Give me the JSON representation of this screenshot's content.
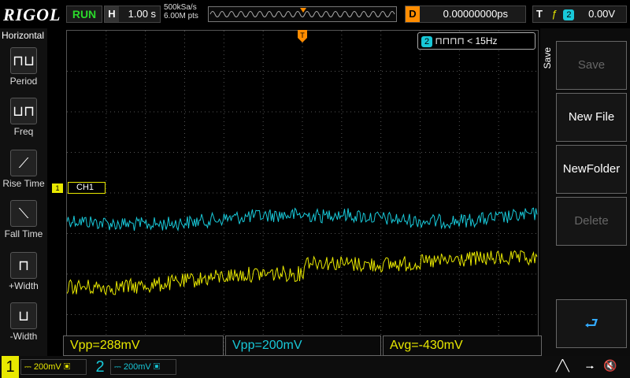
{
  "topbar": {
    "logo": "RIGOL",
    "run_status": "RUN",
    "h_label": "H",
    "timebase": "1.00 s",
    "sample_rate": "500kSa/s",
    "memory_depth": "6.00M pts",
    "delay_label": "D",
    "delay_value": "0.00000000ps",
    "trigger_label": "T",
    "trigger_source": "2",
    "trigger_level": "0.00V"
  },
  "left_menu": {
    "title": "Horizontal",
    "items": [
      {
        "label": "Period",
        "icon": "period-icon"
      },
      {
        "label": "Freq",
        "icon": "freq-icon"
      },
      {
        "label": "Rise Time",
        "icon": "rise-time-icon"
      },
      {
        "label": "Fall Time",
        "icon": "fall-time-icon"
      },
      {
        "label": "+Width",
        "icon": "pos-width-icon"
      },
      {
        "label": "-Width",
        "icon": "neg-width-icon"
      }
    ]
  },
  "right_menu": {
    "title": "Save",
    "items": [
      {
        "label": "Save",
        "enabled": false
      },
      {
        "label": "New File",
        "enabled": true
      },
      {
        "label": "NewFolder",
        "enabled": true
      },
      {
        "label": "Delete",
        "enabled": false
      }
    ]
  },
  "freq_counter": {
    "channel": "2",
    "value": "< 15Hz"
  },
  "ch1_tag": "CH1",
  "ch1_marker": "1",
  "measurements": [
    {
      "text": "Vpp=288mV",
      "color": "#e8e800"
    },
    {
      "text": "Vpp=200mV",
      "color": "#18c8d8"
    },
    {
      "text": "Avg=-430mV",
      "color": "#e8e800"
    }
  ],
  "bottombar": {
    "ch1_num": "1",
    "ch1_scale": "200mV",
    "ch2_num": "2",
    "ch2_scale": "200mV"
  },
  "colors": {
    "ch1": "#e8e800",
    "ch2": "#18c8d8",
    "marker": "#ff8c00"
  }
}
